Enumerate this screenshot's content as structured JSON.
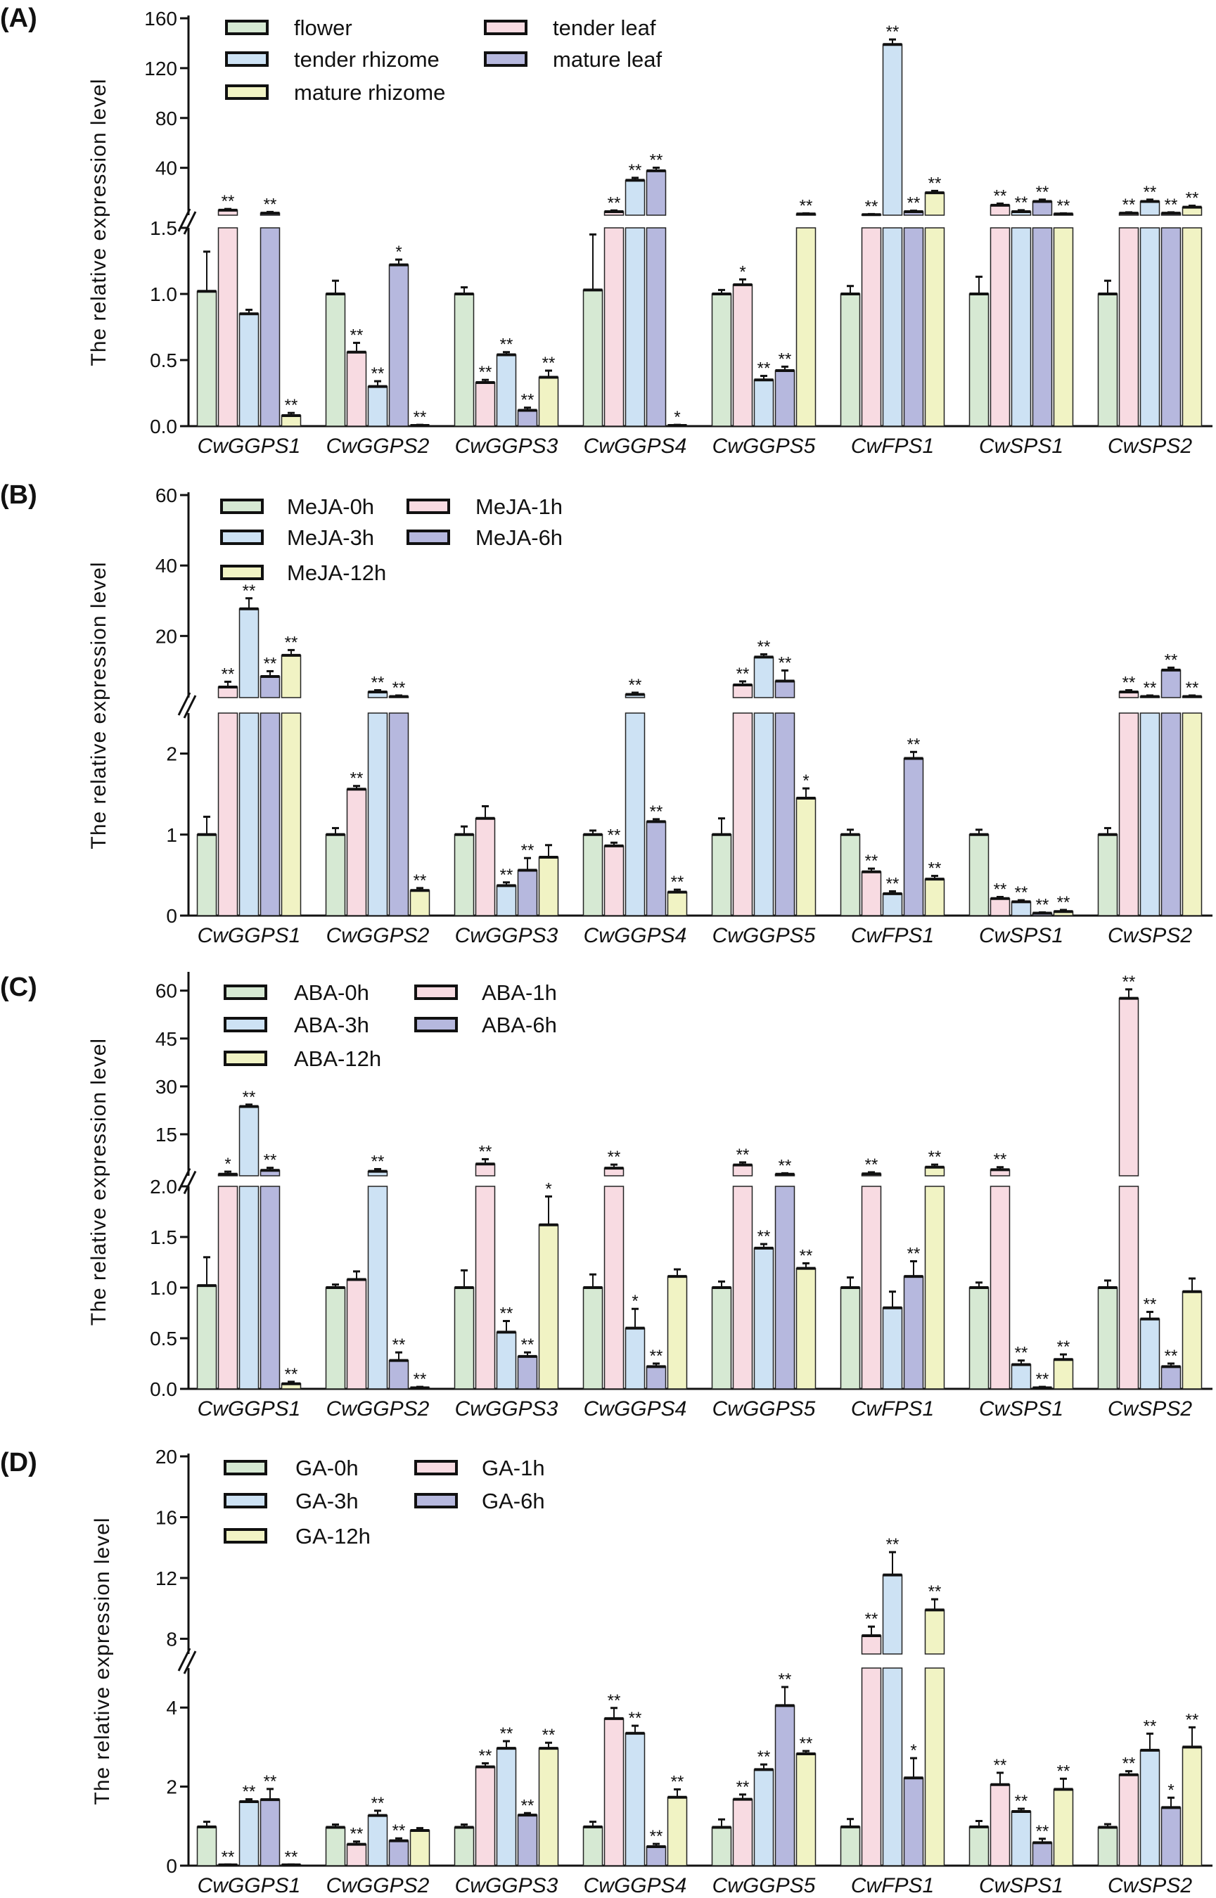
{
  "chart_data": [
    {
      "type": "bar",
      "panel_label": "(A)",
      "ylabel": "The relative expression level",
      "categories": [
        "CwGGPS1",
        "CwGGPS2",
        "CwGGPS3",
        "CwGGPS4",
        "CwGGPS5",
        "CwFPS1",
        "CwSPS1",
        "CwSPS2"
      ],
      "series_names": [
        "flower",
        "tender leaf",
        "tender rhizome",
        "mature leaf",
        "mature rhizome"
      ],
      "axis_break": {
        "lower_range": [
          0,
          1.5
        ],
        "upper_range": [
          2,
          160
        ]
      },
      "lower_ticks": [
        "0.0",
        "0.5",
        "1.0",
        "1.5"
      ],
      "upper_ticks": [
        "40",
        "80",
        "120",
        "160"
      ],
      "values": [
        [
          1.02,
          6.0,
          0.85,
          3.6,
          0.08
        ],
        [
          1.0,
          0.56,
          0.3,
          1.22,
          0.005
        ],
        [
          1.0,
          0.33,
          0.54,
          0.12,
          0.37
        ],
        [
          1.03,
          4.8,
          30,
          37.6,
          0.005
        ],
        [
          1.0,
          1.07,
          0.35,
          0.42,
          3.0
        ],
        [
          1.0,
          2.4,
          139,
          4.8,
          20
        ],
        [
          1.0,
          10,
          4.8,
          13,
          3.0
        ],
        [
          1.0,
          3.6,
          13,
          3.6,
          8.4
        ]
      ],
      "errors": [
        [
          0.3,
          1,
          0.03,
          1,
          0.02
        ],
        [
          0.1,
          0.07,
          0.04,
          0.04,
          0.005
        ],
        [
          0.05,
          0.02,
          0.02,
          0.02,
          0.05
        ],
        [
          0.42,
          1,
          2,
          2.5,
          0.005
        ],
        [
          0.03,
          0.04,
          0.03,
          0.03,
          0.5
        ],
        [
          0.06,
          0.5,
          4,
          0.8,
          1.5
        ],
        [
          0.13,
          1.3,
          1.2,
          1.5,
          0.5
        ],
        [
          0.1,
          0.7,
          1.5,
          0.7,
          1.2
        ]
      ],
      "significance": [
        [
          "",
          "**",
          "",
          "**",
          "**"
        ],
        [
          "",
          "**",
          "**",
          "*",
          "**"
        ],
        [
          "",
          "**",
          "**",
          "**",
          "**"
        ],
        [
          "",
          "**",
          "**",
          "**",
          "*"
        ],
        [
          "",
          "*",
          "**",
          "**",
          "**"
        ],
        [
          "",
          "**",
          "**",
          "**",
          "**"
        ],
        [
          "",
          "**",
          "**",
          "**",
          "**"
        ],
        [
          "",
          "**",
          "**",
          "**",
          "**"
        ]
      ]
    },
    {
      "type": "bar",
      "panel_label": "(B)",
      "ylabel": "The relative expression level",
      "categories": [
        "CwGGPS1",
        "CwGGPS2",
        "CwGGPS3",
        "CwGGPS4",
        "CwGGPS5",
        "CwFPS1",
        "CwSPS1",
        "CwSPS2"
      ],
      "series_names": [
        "MeJA-0h",
        "MeJA-1h",
        "MeJA-3h",
        "MeJA-6h",
        "MeJA-12h"
      ],
      "axis_break": {
        "lower_range": [
          0,
          2.5
        ],
        "upper_range": [
          2.5,
          60
        ]
      },
      "lower_ticks": [
        "0",
        "1",
        "2"
      ],
      "upper_ticks": [
        "20",
        "40",
        "60"
      ],
      "values": [
        [
          1.0,
          5.5,
          27.7,
          8.5,
          14.5
        ],
        [
          1.0,
          1.56,
          4.1,
          2.8,
          0.31
        ],
        [
          1.0,
          1.2,
          0.37,
          0.56,
          0.72
        ],
        [
          1.0,
          0.86,
          3.4,
          1.16,
          0.29
        ],
        [
          1.0,
          6.1,
          14,
          7.2,
          1.45
        ],
        [
          1.0,
          0.54,
          0.27,
          1.94,
          0.45
        ],
        [
          1.0,
          0.21,
          0.17,
          0.03,
          0.05
        ],
        [
          1.0,
          4.1,
          2.8,
          10.3,
          2.8
        ]
      ],
      "errors": [
        [
          0.22,
          1.5,
          3,
          1.5,
          1.5
        ],
        [
          0.08,
          0.04,
          0.5,
          0.3,
          0.03
        ],
        [
          0.1,
          0.15,
          0.04,
          0.15,
          0.15
        ],
        [
          0.05,
          0.04,
          0.5,
          0.03,
          0.03
        ],
        [
          0.2,
          1,
          0.8,
          3,
          0.12
        ],
        [
          0.06,
          0.04,
          0.03,
          0.08,
          0.04
        ],
        [
          0.06,
          0.02,
          0.02,
          0.01,
          0.02
        ],
        [
          0.08,
          0.5,
          0.3,
          0.7,
          0.3
        ]
      ],
      "significance": [
        [
          "",
          "**",
          "**",
          "**",
          "**"
        ],
        [
          "",
          "**",
          "**",
          "**",
          "**"
        ],
        [
          "",
          "",
          "**",
          "**",
          ""
        ],
        [
          "",
          "**",
          "**",
          "**",
          "**"
        ],
        [
          "",
          "**",
          "**",
          "**",
          "*"
        ],
        [
          "",
          "**",
          "**",
          "**",
          "**"
        ],
        [
          "",
          "**",
          "**",
          "**",
          "**"
        ],
        [
          "",
          "**",
          "**",
          "**",
          "**"
        ]
      ]
    },
    {
      "type": "bar",
      "panel_label": "(C)",
      "ylabel": "The relative expression level",
      "categories": [
        "CwGGPS1",
        "CwGGPS2",
        "CwGGPS3",
        "CwGGPS4",
        "CwGGPS5",
        "CwFPS1",
        "CwSPS1",
        "CwSPS2"
      ],
      "series_names": [
        "ABA-0h",
        "ABA-1h",
        "ABA-3h",
        "ABA-6h",
        "ABA-12h"
      ],
      "axis_break": {
        "lower_range": [
          0,
          2.0
        ],
        "upper_range": [
          2,
          65
        ]
      },
      "lower_ticks": [
        "0.0",
        "0.5",
        "1.0",
        "1.5",
        "2.0"
      ],
      "upper_ticks": [
        "15",
        "30",
        "45",
        "60"
      ],
      "values": [
        [
          1.02,
          2.5,
          23.7,
          3.7,
          0.05
        ],
        [
          1.0,
          1.08,
          3.4,
          0.28,
          0.01
        ],
        [
          1.0,
          5.7,
          0.56,
          0.32,
          1.62
        ],
        [
          1.0,
          4.4,
          0.6,
          0.22,
          1.11
        ],
        [
          1.0,
          5.4,
          1.39,
          2.5,
          1.19
        ],
        [
          1.0,
          2.6,
          0.8,
          1.11,
          4.7
        ],
        [
          1.0,
          3.9,
          0.24,
          0.01,
          0.29
        ],
        [
          1.0,
          57.6,
          0.69,
          0.22,
          0.96
        ]
      ],
      "errors": [
        [
          0.28,
          0.8,
          0.6,
          0.8,
          0.02
        ],
        [
          0.03,
          0.08,
          0.7,
          0.08,
          0.01
        ],
        [
          0.17,
          1.5,
          0.11,
          0.04,
          0.28
        ],
        [
          0.13,
          1.1,
          0.19,
          0.03,
          0.07
        ],
        [
          0.06,
          0.8,
          0.04,
          0.3,
          0.05
        ],
        [
          0.1,
          0.5,
          0.16,
          0.15,
          0.8
        ],
        [
          0.05,
          0.8,
          0.04,
          0.01,
          0.05
        ],
        [
          0.07,
          2.8,
          0.07,
          0.03,
          0.13
        ]
      ],
      "significance": [
        [
          "",
          "*",
          "**",
          "**",
          "**"
        ],
        [
          "",
          "",
          "**",
          "**",
          "**"
        ],
        [
          "",
          "**",
          "**",
          "**",
          "*"
        ],
        [
          "",
          "**",
          "*",
          "**",
          ""
        ],
        [
          "",
          "**",
          "**",
          "**",
          "**"
        ],
        [
          "",
          "**",
          "",
          "**",
          "**"
        ],
        [
          "",
          "**",
          "**",
          "**",
          "**"
        ],
        [
          "",
          "**",
          "**",
          "**",
          ""
        ]
      ]
    },
    {
      "type": "bar",
      "panel_label": "(D)",
      "ylabel": "The relative expression level",
      "categories": [
        "CwGGPS1",
        "CwGGPS2",
        "CwGGPS3",
        "CwGGPS4",
        "CwGGPS5",
        "CwFPS1",
        "CwSPS1",
        "CwSPS2"
      ],
      "series_names": [
        "GA-0h",
        "GA-1h",
        "GA-3h",
        "GA-6h",
        "GA-12h"
      ],
      "axis_break": {
        "lower_range": [
          0,
          5
        ],
        "upper_range": [
          7,
          20
        ]
      },
      "lower_ticks": [
        "0",
        "2",
        "4"
      ],
      "upper_ticks": [
        "8",
        "12",
        "16",
        "20"
      ],
      "values": [
        [
          0.98,
          0.02,
          1.62,
          1.67,
          0.02
        ],
        [
          0.97,
          0.54,
          1.27,
          0.63,
          0.89
        ],
        [
          0.97,
          2.5,
          2.97,
          1.28,
          2.97
        ],
        [
          0.98,
          3.72,
          3.35,
          0.48,
          1.73
        ],
        [
          0.97,
          1.68,
          2.43,
          4.05,
          2.83
        ],
        [
          0.98,
          8.2,
          12.2,
          2.22,
          9.9
        ],
        [
          0.98,
          2.05,
          1.37,
          0.58,
          1.93
        ],
        [
          0.97,
          2.3,
          2.92,
          1.47,
          3.0
        ]
      ],
      "errors": [
        [
          0.13,
          0.01,
          0.06,
          0.27,
          0.01
        ],
        [
          0.07,
          0.07,
          0.12,
          0.06,
          0.06
        ],
        [
          0.07,
          0.09,
          0.18,
          0.05,
          0.14
        ],
        [
          0.13,
          0.27,
          0.19,
          0.07,
          0.2
        ],
        [
          0.2,
          0.12,
          0.13,
          0.47,
          0.07
        ],
        [
          0.2,
          0.6,
          1.5,
          0.5,
          0.7
        ],
        [
          0.15,
          0.3,
          0.07,
          0.1,
          0.27
        ],
        [
          0.08,
          0.09,
          0.42,
          0.25,
          0.5
        ]
      ],
      "significance": [
        [
          "",
          "**",
          "**",
          "**",
          "**"
        ],
        [
          "",
          "**",
          "**",
          "**",
          ""
        ],
        [
          "",
          "**",
          "**",
          "**",
          "**"
        ],
        [
          "",
          "**",
          "**",
          "**",
          "**"
        ],
        [
          "",
          "**",
          "**",
          "**",
          "**"
        ],
        [
          "",
          "**",
          "**",
          "*",
          "**"
        ],
        [
          "",
          "**",
          "**",
          "**",
          "**"
        ],
        [
          "",
          "**",
          "**",
          "*",
          "**"
        ]
      ]
    }
  ],
  "colors": [
    "#d6e9d3",
    "#f8dbe2",
    "#cde2f4",
    "#b6b8de",
    "#f1f3c4"
  ]
}
